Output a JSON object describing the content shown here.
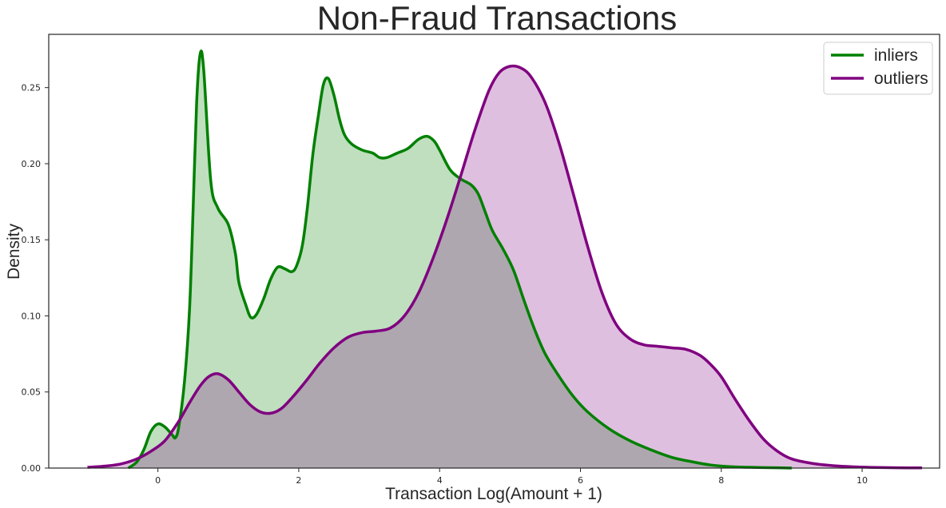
{
  "chart_data": {
    "type": "area",
    "title": "Non-Fraud Transactions",
    "xlabel": "Transaction Log(Amount + 1)",
    "ylabel": "Density",
    "xlim": [
      -1.55,
      11.1
    ],
    "ylim": [
      0,
      0.285
    ],
    "x_ticks": [
      0,
      2,
      4,
      6,
      8,
      10
    ],
    "y_ticks": [
      0.0,
      0.05,
      0.1,
      0.15,
      0.2,
      0.25
    ],
    "y_tick_labels": [
      "0.00",
      "0.05",
      "0.10",
      "0.15",
      "0.20",
      "0.25"
    ],
    "grid": false,
    "legend_position": "top-right",
    "series": [
      {
        "name": "inliers",
        "color": "#008000",
        "fill": "#c0e0c0",
        "x": [
          -0.42,
          -0.3,
          -0.2,
          -0.1,
          0.0,
          0.1,
          0.2,
          0.25,
          0.3,
          0.38,
          0.45,
          0.5,
          0.55,
          0.6,
          0.65,
          0.75,
          0.85,
          1.0,
          1.1,
          1.15,
          1.25,
          1.32,
          1.4,
          1.5,
          1.6,
          1.7,
          1.8,
          1.9,
          1.97,
          2.05,
          2.12,
          2.2,
          2.28,
          2.35,
          2.42,
          2.5,
          2.58,
          2.65,
          2.75,
          2.9,
          3.05,
          3.15,
          3.25,
          3.4,
          3.55,
          3.7,
          3.82,
          3.92,
          4.0,
          4.15,
          4.3,
          4.45,
          4.55,
          4.65,
          4.75,
          4.9,
          5.05,
          5.2,
          5.35,
          5.5,
          5.7,
          5.9,
          6.1,
          6.4,
          6.7,
          7.0,
          7.3,
          7.6,
          7.85,
          8.1,
          8.4,
          8.8,
          9.0
        ],
        "y": [
          0.0,
          0.004,
          0.012,
          0.024,
          0.029,
          0.027,
          0.022,
          0.02,
          0.028,
          0.058,
          0.105,
          0.17,
          0.24,
          0.272,
          0.262,
          0.189,
          0.171,
          0.16,
          0.141,
          0.122,
          0.107,
          0.099,
          0.101,
          0.111,
          0.124,
          0.132,
          0.131,
          0.129,
          0.133,
          0.146,
          0.17,
          0.206,
          0.232,
          0.252,
          0.256,
          0.245,
          0.229,
          0.219,
          0.213,
          0.209,
          0.207,
          0.204,
          0.204,
          0.207,
          0.21,
          0.216,
          0.218,
          0.215,
          0.209,
          0.196,
          0.19,
          0.186,
          0.18,
          0.168,
          0.156,
          0.144,
          0.13,
          0.11,
          0.091,
          0.075,
          0.06,
          0.047,
          0.037,
          0.026,
          0.018,
          0.012,
          0.007,
          0.004,
          0.002,
          0.001,
          0.0005,
          0.0002,
          0.0
        ]
      },
      {
        "name": "outliers",
        "color": "#800080",
        "fill": "#e0bde0",
        "x": [
          -1.0,
          -0.7,
          -0.5,
          -0.3,
          -0.1,
          0.1,
          0.3,
          0.45,
          0.6,
          0.72,
          0.85,
          1.0,
          1.15,
          1.3,
          1.45,
          1.6,
          1.75,
          1.9,
          2.1,
          2.3,
          2.5,
          2.7,
          2.9,
          3.1,
          3.3,
          3.5,
          3.7,
          3.9,
          4.1,
          4.3,
          4.5,
          4.7,
          4.85,
          5.0,
          5.15,
          5.3,
          5.5,
          5.7,
          5.9,
          6.1,
          6.3,
          6.5,
          6.7,
          6.9,
          7.1,
          7.3,
          7.5,
          7.7,
          7.85,
          8.0,
          8.2,
          8.4,
          8.6,
          8.8,
          9.0,
          9.3,
          9.6,
          9.9,
          10.2,
          10.5,
          10.85
        ],
        "y": [
          0.0005,
          0.0015,
          0.003,
          0.006,
          0.011,
          0.018,
          0.031,
          0.043,
          0.054,
          0.06,
          0.062,
          0.058,
          0.05,
          0.042,
          0.037,
          0.036,
          0.039,
          0.046,
          0.057,
          0.069,
          0.079,
          0.086,
          0.089,
          0.09,
          0.092,
          0.1,
          0.115,
          0.137,
          0.163,
          0.192,
          0.222,
          0.248,
          0.26,
          0.264,
          0.263,
          0.257,
          0.24,
          0.213,
          0.18,
          0.146,
          0.116,
          0.095,
          0.085,
          0.081,
          0.08,
          0.079,
          0.078,
          0.074,
          0.068,
          0.06,
          0.045,
          0.031,
          0.019,
          0.011,
          0.006,
          0.003,
          0.0015,
          0.0008,
          0.0004,
          0.0002,
          0.0001
        ]
      }
    ]
  }
}
